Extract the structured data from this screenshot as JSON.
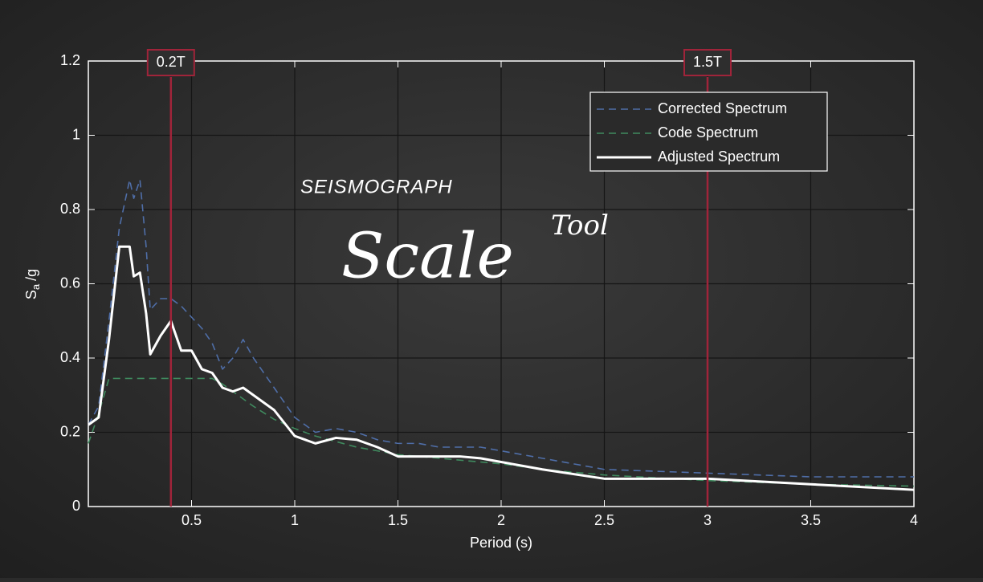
{
  "chart_data": {
    "type": "line",
    "title": "Scale",
    "subtitle": "SEISMOGRAPH",
    "title_note": "Tool",
    "xlabel": "Period (s)",
    "ylabel": {
      "main": "S",
      "sub": "a",
      "rest": "/g"
    },
    "x": [
      0,
      0.05,
      0.1,
      0.15,
      0.2,
      0.22,
      0.25,
      0.28,
      0.3,
      0.35,
      0.4,
      0.45,
      0.5,
      0.55,
      0.6,
      0.65,
      0.7,
      0.75,
      0.8,
      0.9,
      1.0,
      1.1,
      1.2,
      1.3,
      1.4,
      1.5,
      1.6,
      1.7,
      1.8,
      1.9,
      2.0,
      2.2,
      2.5,
      3.0,
      3.5,
      4.0
    ],
    "series": [
      {
        "name": "Corrected Spectrum",
        "color": "#4f6ea8",
        "dash": true,
        "values": [
          0.22,
          0.27,
          0.5,
          0.75,
          0.88,
          0.83,
          0.88,
          0.7,
          0.53,
          0.56,
          0.56,
          0.54,
          0.51,
          0.48,
          0.44,
          0.37,
          0.4,
          0.45,
          0.4,
          0.32,
          0.24,
          0.2,
          0.21,
          0.2,
          0.18,
          0.17,
          0.17,
          0.16,
          0.16,
          0.16,
          0.15,
          0.13,
          0.1,
          0.09,
          0.08,
          0.08
        ]
      },
      {
        "name": "Code Spectrum",
        "color": "#3f8a5e",
        "dash": true,
        "values": [
          0.17,
          0.25,
          0.345,
          0.345,
          0.345,
          0.345,
          0.345,
          0.345,
          0.345,
          0.345,
          0.345,
          0.345,
          0.345,
          0.345,
          0.345,
          0.33,
          0.31,
          0.29,
          0.27,
          0.235,
          0.21,
          0.19,
          0.175,
          0.16,
          0.15,
          0.14,
          0.135,
          0.13,
          0.125,
          0.12,
          0.115,
          0.1,
          0.085,
          0.07,
          0.06,
          0.055
        ]
      },
      {
        "name": "Adjusted Spectrum",
        "color": "#ffffff",
        "dash": false,
        "values": [
          0.22,
          0.24,
          0.45,
          0.7,
          0.7,
          0.62,
          0.63,
          0.52,
          0.41,
          0.46,
          0.5,
          0.42,
          0.42,
          0.37,
          0.36,
          0.32,
          0.31,
          0.32,
          0.3,
          0.26,
          0.19,
          0.17,
          0.185,
          0.18,
          0.16,
          0.135,
          0.135,
          0.135,
          0.135,
          0.13,
          0.12,
          0.1,
          0.075,
          0.075,
          0.06,
          0.045
        ]
      }
    ],
    "markers": [
      {
        "x": 0.4,
        "label": "0.2T"
      },
      {
        "x": 3,
        "label": "1.5T"
      }
    ],
    "marker_color": "#a0243a",
    "xlim": [
      0,
      4
    ],
    "xticks": [
      0.5,
      1,
      1.5,
      2,
      2.5,
      3,
      3.5,
      4
    ],
    "ylim": [
      0,
      1.2
    ],
    "yticks": [
      0,
      0.2,
      0.4,
      0.6,
      0.8,
      1,
      1.2
    ],
    "grid": true,
    "legend": "upper right"
  }
}
